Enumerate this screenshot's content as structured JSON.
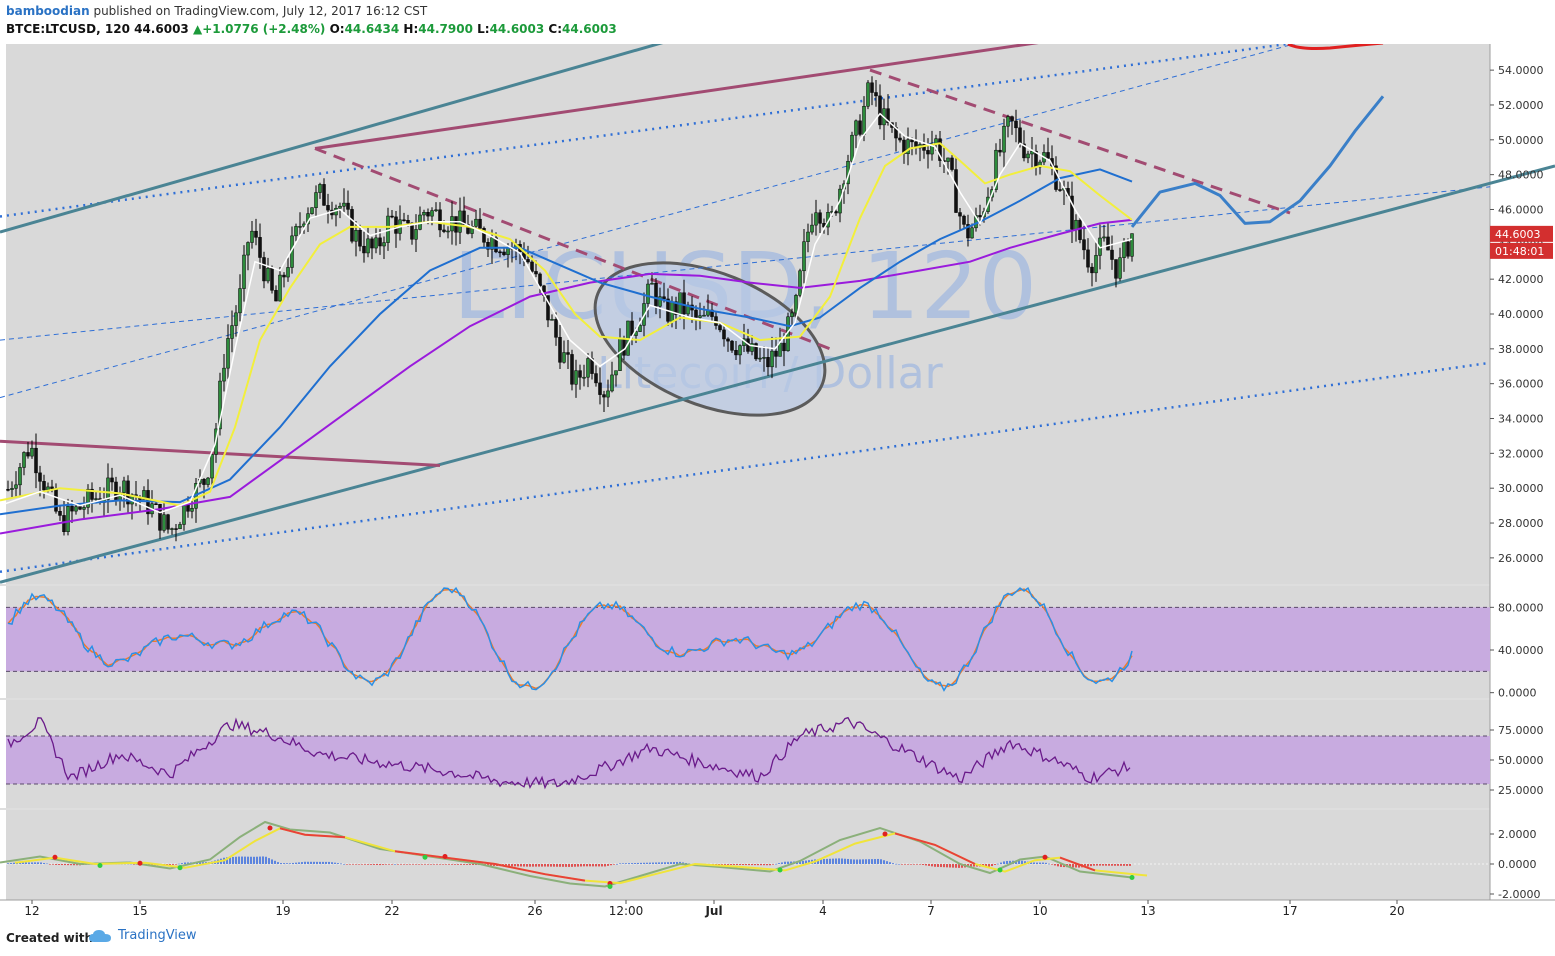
{
  "header": {
    "user": "bamboodian",
    "published": "published on TradingView.com, July 12, 2017 16:12 CST",
    "symbol": "BTCE:LTCUSD, 120",
    "last": "44.6003",
    "change": "+1.0776 (+2.48%)",
    "open_label": "O:",
    "open": "44.6434",
    "high_label": "H:",
    "high": "44.7900",
    "low_label": "L:",
    "low": "44.6003",
    "close_label": "C:",
    "close": "44.6003"
  },
  "watermark": {
    "symbol": "LTCUSD, 120",
    "description": "Litecoin / Dollar"
  },
  "footer": {
    "created": "Created with",
    "brand": "TradingView"
  },
  "colors": {
    "up": "#1c9a3a",
    "price_tag": "#d32f2f",
    "channel": "#4a8494",
    "resistance": "#a24b72",
    "dotted": "#2f6fd6",
    "projection": "#3a7fc8",
    "sma_fast": "#ffffff",
    "sma_mid": "#f2ef3c",
    "sma_slow": "#1f6fd0",
    "sma_long": "#9a1bdc",
    "band": "#c8abe0"
  },
  "chart_data": {
    "type": "candlestick",
    "symbol": "LTCUSD",
    "interval": "120",
    "x_ticks": [
      "12",
      "15",
      "19",
      "22",
      "26",
      "12:00",
      "Jul",
      "4",
      "7",
      "10",
      "13",
      "17",
      "20"
    ],
    "price_panel": {
      "y_ticks": [
        "54.0000",
        "52.0000",
        "50.0000",
        "48.0000",
        "46.0000",
        "44.0000",
        "42.0000",
        "40.0000",
        "38.0000",
        "36.0000",
        "34.0000",
        "32.0000",
        "30.0000",
        "28.0000",
        "26.0000"
      ],
      "ylim": [
        24.5,
        55.5
      ],
      "last_price_label": "44.6003",
      "countdown_label": "01:48:01",
      "close_path": [
        [
          0,
          29.0
        ],
        [
          30,
          32.5
        ],
        [
          60,
          28.0
        ],
        [
          90,
          29.3
        ],
        [
          120,
          30.2
        ],
        [
          150,
          29.0
        ],
        [
          170,
          27.5
        ],
        [
          190,
          29.5
        ],
        [
          205,
          30.5
        ],
        [
          215,
          33.0
        ],
        [
          225,
          38.0
        ],
        [
          240,
          41.0
        ],
        [
          250,
          45.0
        ],
        [
          262,
          43.0
        ],
        [
          275,
          40.5
        ],
        [
          290,
          43.5
        ],
        [
          305,
          46.0
        ],
        [
          320,
          46.8
        ],
        [
          340,
          46.2
        ],
        [
          355,
          44.5
        ],
        [
          375,
          43.5
        ],
        [
          390,
          45.5
        ],
        [
          410,
          44.5
        ],
        [
          425,
          46.0
        ],
        [
          445,
          45.5
        ],
        [
          465,
          45.0
        ],
        [
          485,
          44.5
        ],
        [
          505,
          44.0
        ],
        [
          525,
          43.5
        ],
        [
          545,
          40.5
        ],
        [
          560,
          38.0
        ],
        [
          575,
          36.0
        ],
        [
          590,
          37.5
        ],
        [
          605,
          35.5
        ],
        [
          620,
          38.0
        ],
        [
          640,
          40.0
        ],
        [
          652,
          41.5
        ],
        [
          665,
          40.0
        ],
        [
          680,
          40.5
        ],
        [
          700,
          39.5
        ],
        [
          715,
          40.0
        ],
        [
          730,
          38.5
        ],
        [
          745,
          38.0
        ],
        [
          765,
          37.0
        ],
        [
          780,
          38.0
        ],
        [
          795,
          40.0
        ],
        [
          805,
          44.0
        ],
        [
          815,
          46.5
        ],
        [
          830,
          45.0
        ],
        [
          845,
          48.5
        ],
        [
          860,
          51.0
        ],
        [
          870,
          53.0
        ],
        [
          880,
          51.5
        ],
        [
          895,
          50.0
        ],
        [
          915,
          49.5
        ],
        [
          935,
          50.0
        ],
        [
          950,
          48.0
        ],
        [
          965,
          44.5
        ],
        [
          980,
          45.5
        ],
        [
          995,
          48.5
        ],
        [
          1010,
          51.0
        ],
        [
          1025,
          49.5
        ],
        [
          1045,
          49.0
        ],
        [
          1060,
          47.5
        ],
        [
          1075,
          45.0
        ],
        [
          1090,
          43.0
        ],
        [
          1105,
          44.0
        ],
        [
          1118,
          42.5
        ],
        [
          1132,
          44.6
        ]
      ],
      "sma_fast": [
        [
          0,
          29.0
        ],
        [
          40,
          29.8
        ],
        [
          80,
          29.0
        ],
        [
          120,
          29.6
        ],
        [
          160,
          28.6
        ],
        [
          190,
          29.2
        ],
        [
          215,
          32.5
        ],
        [
          235,
          38.0
        ],
        [
          255,
          43.0
        ],
        [
          280,
          42.5
        ],
        [
          310,
          45.5
        ],
        [
          340,
          46.0
        ],
        [
          370,
          44.5
        ],
        [
          400,
          45.0
        ],
        [
          430,
          45.3
        ],
        [
          460,
          45.3
        ],
        [
          490,
          44.5
        ],
        [
          520,
          43.5
        ],
        [
          545,
          41.0
        ],
        [
          570,
          38.5
        ],
        [
          600,
          37.0
        ],
        [
          625,
          38.0
        ],
        [
          650,
          40.5
        ],
        [
          690,
          39.8
        ],
        [
          720,
          39.5
        ],
        [
          750,
          38.2
        ],
        [
          775,
          38.0
        ],
        [
          795,
          39.5
        ],
        [
          815,
          44.0
        ],
        [
          840,
          46.5
        ],
        [
          860,
          50.0
        ],
        [
          880,
          51.5
        ],
        [
          905,
          50.2
        ],
        [
          935,
          49.6
        ],
        [
          960,
          47.0
        ],
        [
          980,
          45.2
        ],
        [
          1000,
          48.0
        ],
        [
          1020,
          49.8
        ],
        [
          1050,
          48.8
        ],
        [
          1075,
          46.0
        ],
        [
          1100,
          43.8
        ],
        [
          1132,
          44.3
        ]
      ],
      "sma_mid": [
        [
          0,
          29.3
        ],
        [
          60,
          30.0
        ],
        [
          120,
          29.7
        ],
        [
          180,
          29.0
        ],
        [
          210,
          29.8
        ],
        [
          235,
          33.5
        ],
        [
          260,
          38.5
        ],
        [
          290,
          41.5
        ],
        [
          320,
          44.0
        ],
        [
          350,
          45.0
        ],
        [
          390,
          45.0
        ],
        [
          430,
          45.3
        ],
        [
          470,
          45.0
        ],
        [
          510,
          44.3
        ],
        [
          545,
          42.5
        ],
        [
          575,
          40.0
        ],
        [
          600,
          38.7
        ],
        [
          640,
          38.5
        ],
        [
          680,
          39.8
        ],
        [
          720,
          39.5
        ],
        [
          760,
          38.5
        ],
        [
          800,
          38.7
        ],
        [
          830,
          41.0
        ],
        [
          860,
          45.5
        ],
        [
          885,
          48.5
        ],
        [
          910,
          49.5
        ],
        [
          940,
          49.8
        ],
        [
          960,
          48.8
        ],
        [
          985,
          47.5
        ],
        [
          1010,
          48.0
        ],
        [
          1040,
          48.5
        ],
        [
          1070,
          48.2
        ],
        [
          1100,
          46.8
        ],
        [
          1132,
          45.4
        ]
      ],
      "sma_slow": [
        [
          0,
          28.5
        ],
        [
          60,
          29.0
        ],
        [
          120,
          29.3
        ],
        [
          180,
          29.2
        ],
        [
          230,
          30.5
        ],
        [
          280,
          33.5
        ],
        [
          330,
          37.0
        ],
        [
          380,
          40.0
        ],
        [
          430,
          42.5
        ],
        [
          480,
          43.8
        ],
        [
          520,
          43.8
        ],
        [
          560,
          42.8
        ],
        [
          600,
          41.8
        ],
        [
          650,
          41.0
        ],
        [
          700,
          40.3
        ],
        [
          750,
          39.8
        ],
        [
          790,
          39.3
        ],
        [
          820,
          39.8
        ],
        [
          860,
          41.5
        ],
        [
          900,
          43.0
        ],
        [
          940,
          44.3
        ],
        [
          980,
          45.3
        ],
        [
          1020,
          46.5
        ],
        [
          1060,
          47.8
        ],
        [
          1100,
          48.3
        ],
        [
          1132,
          47.6
        ]
      ],
      "sma_long": [
        [
          0,
          27.4
        ],
        [
          80,
          28.2
        ],
        [
          160,
          28.8
        ],
        [
          230,
          29.5
        ],
        [
          290,
          32.0
        ],
        [
          350,
          34.5
        ],
        [
          410,
          37.0
        ],
        [
          470,
          39.3
        ],
        [
          530,
          41.0
        ],
        [
          590,
          41.8
        ],
        [
          650,
          42.3
        ],
        [
          700,
          42.2
        ],
        [
          750,
          41.8
        ],
        [
          800,
          41.5
        ],
        [
          860,
          41.9
        ],
        [
          920,
          42.5
        ],
        [
          970,
          43.0
        ],
        [
          1010,
          43.8
        ],
        [
          1060,
          44.6
        ],
        [
          1100,
          45.2
        ],
        [
          1132,
          45.4
        ]
      ],
      "projection_path": [
        [
          1132,
          45.0
        ],
        [
          1160,
          47.0
        ],
        [
          1195,
          47.5
        ],
        [
          1220,
          46.8
        ],
        [
          1245,
          45.2
        ],
        [
          1270,
          45.3
        ],
        [
          1300,
          46.5
        ],
        [
          1330,
          48.5
        ],
        [
          1355,
          50.5
        ],
        [
          1383,
          52.5
        ]
      ],
      "channel_lower": [
        [
          0,
          24.6
        ],
        [
          1555,
          48.5
        ]
      ],
      "channel_upper": [
        [
          0,
          44.7
        ],
        [
          670,
          55.7
        ]
      ],
      "resistance_top": [
        [
          315,
          49.5
        ],
        [
          1040,
          55.6
        ]
      ],
      "resistance_left": [
        [
          0,
          32.7
        ],
        [
          440,
          31.3
        ]
      ],
      "downtrend_1": [
        [
          315,
          49.5
        ],
        [
          830,
          38.0
        ]
      ],
      "downtrend_2": [
        [
          870,
          54.0
        ],
        [
          1290,
          45.8
        ]
      ],
      "dotted_upper": [
        [
          0,
          45.6
        ],
        [
          1300,
          55.6
        ]
      ],
      "dotted_lower": [
        [
          0,
          25.2
        ],
        [
          1490,
          37.2
        ]
      ],
      "dashed_thin_1": [
        [
          0,
          35.2
        ],
        [
          1300,
          55.6
        ]
      ],
      "dashed_thin_2": [
        [
          0,
          38.5
        ],
        [
          1490,
          47.3
        ]
      ]
    },
    "stoch_panel": {
      "y_ticks": [
        "80.0000",
        "40.0000",
        "0.0000"
      ],
      "ylim": [
        -5,
        100
      ],
      "band": [
        20,
        80
      ]
    },
    "rsi_panel": {
      "y_ticks": [
        "75.0000",
        "50.0000",
        "25.0000"
      ],
      "ylim": [
        10,
        100
      ],
      "band": [
        30,
        70
      ]
    },
    "macd_panel": {
      "y_ticks": [
        "2.0000",
        "0.0000",
        "-2.0000"
      ],
      "ylim": [
        -2.4,
        3.6
      ]
    }
  }
}
